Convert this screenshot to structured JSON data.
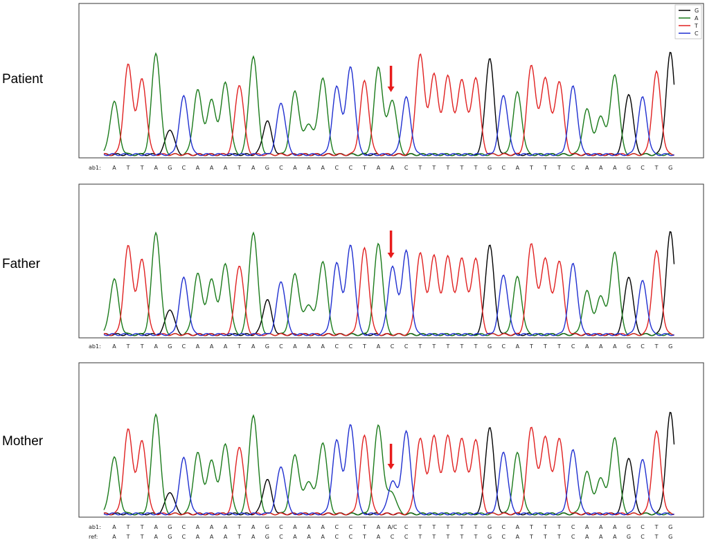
{
  "figure": {
    "panels": [
      {
        "label": "Patient",
        "ab1_prefix": "ab1:",
        "highlight_text": "A",
        "highlight_color": "#e8322a"
      },
      {
        "label": "Father",
        "ab1_prefix": "ab1:"
      },
      {
        "label": "Mother",
        "ab1_prefix": "ab1:",
        "ref_prefix": "ref:",
        "highlight_text": "A/C",
        "highlight_color": "#e8a030"
      }
    ],
    "legend": [
      {
        "base": "G",
        "color": "#000000"
      },
      {
        "base": "A",
        "color": "#1a7a1a"
      },
      {
        "base": "T",
        "color": "#e02020"
      },
      {
        "base": "C",
        "color": "#1f2fd0"
      }
    ],
    "arrow_color": "#e81c1c"
  },
  "chart_data": {
    "type": "line",
    "title": "",
    "xlabel": "",
    "ylabel": "",
    "sequence": [
      "A",
      "T",
      "T",
      "A",
      "G",
      "C",
      "A",
      "A",
      "A",
      "T",
      "A",
      "G",
      "C",
      "A",
      "A",
      "A",
      "C",
      "C",
      "T",
      "A",
      "C",
      "C",
      "T",
      "T",
      "T",
      "T",
      "T",
      "G",
      "C",
      "A",
      "T",
      "T",
      "T",
      "C",
      "A",
      "A",
      "A",
      "G",
      "C",
      "T",
      "G"
    ],
    "variant_position_index": 20,
    "panels": [
      {
        "name": "Patient",
        "called_bases": [
          "A",
          "T",
          "T",
          "A",
          "G",
          "C",
          "A",
          "A",
          "A",
          "T",
          "A",
          "G",
          "C",
          "A",
          "A",
          "A",
          "C",
          "C",
          "T",
          "A",
          "A",
          "C",
          "T",
          "T",
          "T",
          "T",
          "T",
          "G",
          "C",
          "A",
          "T",
          "T",
          "T",
          "C",
          "A",
          "A",
          "A",
          "G",
          "C",
          "T",
          "G"
        ],
        "peak_heights": [
          0.52,
          0.88,
          0.74,
          1.0,
          0.25,
          0.57,
          0.63,
          0.53,
          0.71,
          0.69,
          0.97,
          0.33,
          0.51,
          0.62,
          0.3,
          0.76,
          0.66,
          0.86,
          0.72,
          0.86,
          0.54,
          0.56,
          0.98,
          0.78,
          0.77,
          0.74,
          0.76,
          0.95,
          0.58,
          0.61,
          0.88,
          0.76,
          0.72,
          0.67,
          0.44,
          0.37,
          0.79,
          0.6,
          0.56,
          0.81,
          1.0
        ],
        "secondary_peak_height": 0.0
      },
      {
        "name": "Father",
        "called_bases": [
          "A",
          "T",
          "T",
          "A",
          "G",
          "C",
          "A",
          "A",
          "A",
          "T",
          "A",
          "G",
          "C",
          "A",
          "A",
          "A",
          "C",
          "C",
          "T",
          "A",
          "C",
          "C",
          "T",
          "T",
          "T",
          "T",
          "T",
          "G",
          "C",
          "A",
          "T",
          "T",
          "T",
          "C",
          "A",
          "A",
          "A",
          "G",
          "C",
          "T",
          "G"
        ],
        "peak_heights": [
          0.54,
          0.86,
          0.73,
          1.0,
          0.25,
          0.55,
          0.59,
          0.53,
          0.69,
          0.68,
          1.0,
          0.34,
          0.52,
          0.59,
          0.29,
          0.72,
          0.69,
          0.87,
          0.84,
          0.89,
          0.66,
          0.81,
          0.79,
          0.76,
          0.76,
          0.75,
          0.75,
          0.88,
          0.58,
          0.56,
          0.89,
          0.75,
          0.72,
          0.69,
          0.42,
          0.37,
          0.81,
          0.57,
          0.52,
          0.81,
          1.0
        ],
        "secondary_peak_height": 0.0
      },
      {
        "name": "Mother",
        "called_bases": [
          "A",
          "T",
          "T",
          "A",
          "G",
          "C",
          "A",
          "A",
          "A",
          "T",
          "A",
          "G",
          "C",
          "A",
          "A",
          "A",
          "C",
          "C",
          "T",
          "A",
          "A/C",
          "C",
          "T",
          "T",
          "T",
          "T",
          "T",
          "G",
          "C",
          "A",
          "T",
          "T",
          "T",
          "C",
          "A",
          "A",
          "A",
          "G",
          "C",
          "T",
          "G"
        ],
        "peak_heights": [
          0.56,
          0.83,
          0.72,
          0.99,
          0.22,
          0.55,
          0.6,
          0.52,
          0.69,
          0.67,
          0.98,
          0.34,
          0.47,
          0.58,
          0.32,
          0.71,
          0.72,
          0.88,
          0.77,
          0.88,
          0.32,
          0.81,
          0.74,
          0.76,
          0.77,
          0.75,
          0.74,
          0.86,
          0.61,
          0.6,
          0.86,
          0.77,
          0.75,
          0.63,
          0.41,
          0.35,
          0.76,
          0.56,
          0.53,
          0.81,
          1.0
        ],
        "secondary_peak_height": 0.22
      }
    ]
  }
}
